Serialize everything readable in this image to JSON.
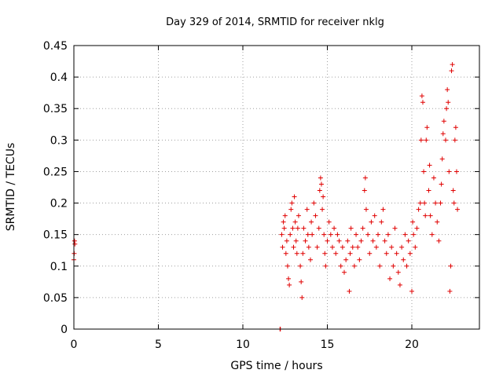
{
  "chart_data": {
    "type": "scatter",
    "title": "Day 329 of 2014, SRMTID for receiver nklg",
    "xlabel": "GPS time / hours",
    "ylabel": "SRMTID / TECUs",
    "xlim": [
      0,
      24
    ],
    "ylim": [
      0,
      0.45
    ],
    "xticks": [
      0,
      5,
      10,
      15,
      20
    ],
    "yticks": [
      0,
      0.05,
      0.1,
      0.15,
      0.2,
      0.25,
      0.3,
      0.35,
      0.4,
      0.45
    ],
    "grid": true,
    "marker": "+",
    "color": "#e00000",
    "series": [
      {
        "points": [
          [
            0.0,
            0.11
          ],
          [
            0.02,
            0.12
          ],
          [
            0.04,
            0.14
          ],
          [
            0.06,
            0.135
          ],
          [
            12.2,
            0.0
          ],
          [
            12.22,
            0.0
          ],
          [
            12.3,
            0.15
          ],
          [
            12.35,
            0.13
          ],
          [
            12.4,
            0.17
          ],
          [
            12.45,
            0.16
          ],
          [
            12.5,
            0.18
          ],
          [
            12.55,
            0.12
          ],
          [
            12.6,
            0.14
          ],
          [
            12.65,
            0.1
          ],
          [
            12.7,
            0.08
          ],
          [
            12.75,
            0.07
          ],
          [
            12.8,
            0.15
          ],
          [
            12.85,
            0.19
          ],
          [
            12.9,
            0.2
          ],
          [
            12.95,
            0.16
          ],
          [
            13.0,
            0.13
          ],
          [
            13.05,
            0.21
          ],
          [
            13.1,
            0.17
          ],
          [
            13.15,
            0.14
          ],
          [
            13.2,
            0.12
          ],
          [
            13.25,
            0.16
          ],
          [
            13.3,
            0.18
          ],
          [
            13.4,
            0.1
          ],
          [
            13.45,
            0.075
          ],
          [
            13.5,
            0.05
          ],
          [
            13.55,
            0.12
          ],
          [
            13.6,
            0.16
          ],
          [
            13.7,
            0.14
          ],
          [
            13.8,
            0.19
          ],
          [
            13.85,
            0.15
          ],
          [
            13.9,
            0.13
          ],
          [
            14.0,
            0.11
          ],
          [
            14.05,
            0.17
          ],
          [
            14.1,
            0.15
          ],
          [
            14.2,
            0.2
          ],
          [
            14.3,
            0.18
          ],
          [
            14.4,
            0.13
          ],
          [
            14.5,
            0.16
          ],
          [
            14.55,
            0.22
          ],
          [
            14.6,
            0.24
          ],
          [
            14.65,
            0.23
          ],
          [
            14.7,
            0.19
          ],
          [
            14.75,
            0.21
          ],
          [
            14.8,
            0.15
          ],
          [
            14.85,
            0.12
          ],
          [
            14.9,
            0.1
          ],
          [
            15.0,
            0.14
          ],
          [
            15.1,
            0.17
          ],
          [
            15.2,
            0.15
          ],
          [
            15.3,
            0.13
          ],
          [
            15.4,
            0.16
          ],
          [
            15.5,
            0.12
          ],
          [
            15.6,
            0.15
          ],
          [
            15.7,
            0.14
          ],
          [
            15.8,
            0.1
          ],
          [
            15.9,
            0.13
          ],
          [
            16.0,
            0.09
          ],
          [
            16.1,
            0.11
          ],
          [
            16.2,
            0.14
          ],
          [
            16.3,
            0.06
          ],
          [
            16.35,
            0.12
          ],
          [
            16.4,
            0.16
          ],
          [
            16.5,
            0.13
          ],
          [
            16.6,
            0.1
          ],
          [
            16.7,
            0.15
          ],
          [
            16.8,
            0.13
          ],
          [
            16.9,
            0.11
          ],
          [
            17.0,
            0.14
          ],
          [
            17.1,
            0.16
          ],
          [
            17.2,
            0.22
          ],
          [
            17.25,
            0.24
          ],
          [
            17.3,
            0.19
          ],
          [
            17.4,
            0.15
          ],
          [
            17.5,
            0.12
          ],
          [
            17.6,
            0.17
          ],
          [
            17.7,
            0.14
          ],
          [
            17.8,
            0.18
          ],
          [
            17.9,
            0.13
          ],
          [
            18.0,
            0.15
          ],
          [
            18.1,
            0.1
          ],
          [
            18.2,
            0.17
          ],
          [
            18.3,
            0.19
          ],
          [
            18.4,
            0.14
          ],
          [
            18.5,
            0.12
          ],
          [
            18.6,
            0.15
          ],
          [
            18.7,
            0.08
          ],
          [
            18.8,
            0.13
          ],
          [
            18.9,
            0.1
          ],
          [
            19.0,
            0.16
          ],
          [
            19.1,
            0.12
          ],
          [
            19.2,
            0.09
          ],
          [
            19.3,
            0.07
          ],
          [
            19.4,
            0.13
          ],
          [
            19.5,
            0.11
          ],
          [
            19.6,
            0.15
          ],
          [
            19.7,
            0.1
          ],
          [
            19.8,
            0.14
          ],
          [
            19.9,
            0.12
          ],
          [
            20.0,
            0.06
          ],
          [
            20.05,
            0.17
          ],
          [
            20.1,
            0.15
          ],
          [
            20.2,
            0.13
          ],
          [
            20.3,
            0.16
          ],
          [
            20.4,
            0.19
          ],
          [
            20.5,
            0.2
          ],
          [
            20.55,
            0.3
          ],
          [
            20.6,
            0.37
          ],
          [
            20.65,
            0.36
          ],
          [
            20.7,
            0.25
          ],
          [
            20.75,
            0.2
          ],
          [
            20.8,
            0.18
          ],
          [
            20.85,
            0.3
          ],
          [
            20.9,
            0.32
          ],
          [
            21.0,
            0.22
          ],
          [
            21.05,
            0.26
          ],
          [
            21.1,
            0.18
          ],
          [
            21.2,
            0.15
          ],
          [
            21.3,
            0.24
          ],
          [
            21.4,
            0.2
          ],
          [
            21.5,
            0.17
          ],
          [
            21.6,
            0.14
          ],
          [
            21.7,
            0.2
          ],
          [
            21.75,
            0.23
          ],
          [
            21.8,
            0.27
          ],
          [
            21.85,
            0.31
          ],
          [
            21.9,
            0.33
          ],
          [
            22.0,
            0.3
          ],
          [
            22.05,
            0.35
          ],
          [
            22.1,
            0.38
          ],
          [
            22.15,
            0.36
          ],
          [
            22.2,
            0.25
          ],
          [
            22.25,
            0.06
          ],
          [
            22.3,
            0.1
          ],
          [
            22.35,
            0.41
          ],
          [
            22.4,
            0.42
          ],
          [
            22.45,
            0.22
          ],
          [
            22.5,
            0.2
          ],
          [
            22.55,
            0.3
          ],
          [
            22.6,
            0.32
          ],
          [
            22.65,
            0.25
          ],
          [
            22.7,
            0.19
          ]
        ]
      }
    ]
  }
}
